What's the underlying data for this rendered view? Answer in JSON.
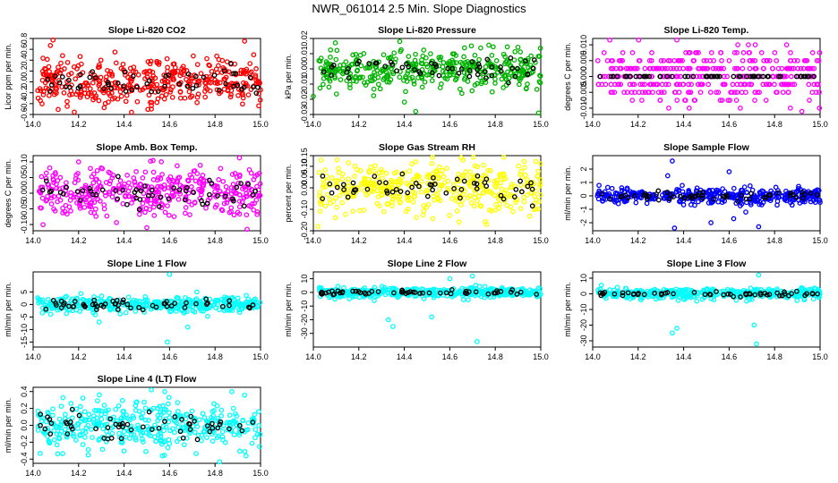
{
  "main_title": "NWR_061014  2.5 Min. Slope Diagnostics",
  "chart_data": [
    {
      "type": "scatter",
      "title": "Slope Li-820 CO2",
      "ylabel": "Licor ppm per min.",
      "color": "#ff0000",
      "xlim": [
        14.0,
        15.0
      ],
      "ylim": [
        -0.6,
        0.8
      ],
      "xticks": [
        14.0,
        14.2,
        14.4,
        14.6,
        14.8,
        15.0
      ],
      "xtick_labels": [
        "14.0",
        "14.2",
        "14.4",
        "14.6",
        "14.8",
        "15.0"
      ],
      "yticks": [
        -0.6,
        -0.4,
        -0.2,
        0.0,
        0.2,
        0.4,
        0.6,
        0.8
      ],
      "ytick_labels": [
        "-0.6",
        "-0.4",
        "-0.2",
        "0.0",
        "0.2",
        "0.4",
        "0.6",
        "0.8"
      ],
      "spread": 0.22,
      "outliers": [
        [
          14.93,
          0.75
        ],
        [
          14.36,
          0.55
        ],
        [
          14.15,
          -0.45
        ],
        [
          14.52,
          -0.5
        ],
        [
          14.97,
          0.5
        ]
      ],
      "seed": 11
    },
    {
      "type": "scatter",
      "title": "Slope Li-820 Pressure",
      "ylabel": "kPa per min.",
      "color": "#00b400",
      "xlim": [
        14.0,
        15.0
      ],
      "ylim": [
        -0.03,
        0.02
      ],
      "xticks": [
        14.0,
        14.2,
        14.4,
        14.6,
        14.8,
        15.0
      ],
      "xtick_labels": [
        "14.0",
        "14.2",
        "14.4",
        "14.6",
        "14.8",
        "15.0"
      ],
      "yticks": [
        -0.03,
        -0.02,
        -0.01,
        0.0,
        0.01,
        0.02
      ],
      "ytick_labels": [
        "-0.03",
        "-0.02",
        "-0.01",
        "0.00",
        "0.01",
        "0.02"
      ],
      "spread": 0.006,
      "outliers": [
        [
          14.99,
          -0.03
        ],
        [
          14.45,
          -0.028
        ],
        [
          14.38,
          0.018
        ],
        [
          14.0,
          -0.018
        ]
      ],
      "seed": 23
    },
    {
      "type": "scatter",
      "title": "Slope Li-820 Temp.",
      "ylabel": "degrees C per min.",
      "color": "#ff00ff",
      "xlim": [
        14.0,
        15.0
      ],
      "ylim": [
        -0.012,
        0.012
      ],
      "xticks": [
        14.0,
        14.2,
        14.4,
        14.6,
        14.8,
        15.0
      ],
      "xtick_labels": [
        "14.0",
        "14.2",
        "14.4",
        "14.6",
        "14.8",
        "15.0"
      ],
      "yticks": [
        -0.01,
        -0.005,
        0.0,
        0.005,
        0.01
      ],
      "ytick_labels": [
        "-0.010",
        "-0.005",
        "0.000",
        "0.005",
        "0.010"
      ],
      "quantized": 0.0025,
      "spread": 0.004,
      "outliers": [
        [
          14.37,
          0.012
        ],
        [
          14.92,
          -0.011
        ]
      ],
      "seed": 37
    },
    {
      "type": "scatter",
      "title": "Slope Amb. Box Temp.",
      "ylabel": "degrees C per min.",
      "color": "#ff00ff",
      "xlim": [
        14.0,
        15.0
      ],
      "ylim": [
        -0.12,
        0.12
      ],
      "xticks": [
        14.0,
        14.2,
        14.4,
        14.6,
        14.8,
        15.0
      ],
      "xtick_labels": [
        "14.0",
        "14.2",
        "14.4",
        "14.6",
        "14.8",
        "15.0"
      ],
      "yticks": [
        -0.1,
        -0.05,
        0.0,
        0.05,
        0.1
      ],
      "ytick_labels": [
        "-0.10",
        "-0.05",
        "0.00",
        "0.05",
        "0.10"
      ],
      "spread": 0.04,
      "outliers": [
        [
          14.5,
          -0.11
        ],
        [
          14.2,
          0.1
        ]
      ],
      "seed": 41
    },
    {
      "type": "scatter",
      "title": "Slope Gas Stream RH",
      "ylabel": "percent per min.",
      "color": "#ffff00",
      "xlim": [
        14.0,
        15.0
      ],
      "ylim": [
        -0.2,
        0.15
      ],
      "xticks": [
        14.0,
        14.2,
        14.4,
        14.6,
        14.8,
        15.0
      ],
      "xtick_labels": [
        "14.0",
        "14.2",
        "14.4",
        "14.6",
        "14.8",
        "15.0"
      ],
      "yticks": [
        -0.2,
        -0.1,
        0.0,
        0.05,
        0.1,
        0.15
      ],
      "ytick_labels": [
        "-0.20",
        "-0.10",
        "0.00",
        "0.05",
        "0.10",
        "0.15"
      ],
      "spread": 0.06,
      "outliers": [
        [
          14.02,
          -0.18
        ],
        [
          14.65,
          0.14
        ]
      ],
      "seed": 53
    },
    {
      "type": "scatter",
      "title": "Slope Sample Flow",
      "ylabel": "ml/min per min.",
      "color": "#0000ff",
      "xlim": [
        14.0,
        15.0
      ],
      "ylim": [
        -2.6,
        3.0
      ],
      "xticks": [
        14.0,
        14.2,
        14.4,
        14.6,
        14.8,
        15.0
      ],
      "xtick_labels": [
        "14.0",
        "14.2",
        "14.4",
        "14.6",
        "14.8",
        "15.0"
      ],
      "yticks": [
        -2,
        -1,
        0,
        1,
        2
      ],
      "ytick_labels": [
        "-2",
        "-1",
        "0",
        "1",
        "2"
      ],
      "spread": 0.3,
      "outliers": [
        [
          14.35,
          2.6
        ],
        [
          14.36,
          -2.4
        ],
        [
          14.6,
          1.8
        ],
        [
          14.62,
          -1.7
        ],
        [
          14.52,
          -2.0
        ],
        [
          14.73,
          -2.3
        ],
        [
          14.33,
          1.5
        ]
      ],
      "seed": 61
    },
    {
      "type": "scatter",
      "title": "Slope Line 1 Flow",
      "ylabel": "ml/min per min.",
      "color": "#00ffff",
      "xlim": [
        14.0,
        15.0
      ],
      "ylim": [
        -17,
        13
      ],
      "xticks": [
        14.0,
        14.2,
        14.4,
        14.6,
        14.8,
        15.0
      ],
      "xtick_labels": [
        "14.0",
        "14.2",
        "14.4",
        "14.6",
        "14.8",
        "15.0"
      ],
      "yticks": [
        -15,
        -10,
        -5,
        0,
        5
      ],
      "ytick_labels": [
        "-15",
        "-10",
        "-5",
        "0",
        "5"
      ],
      "spread": 1.5,
      "outliers": [
        [
          14.6,
          12
        ],
        [
          14.59,
          -15
        ],
        [
          14.68,
          -9
        ],
        [
          14.29,
          -7
        ],
        [
          14.72,
          5
        ]
      ],
      "seed": 71
    },
    {
      "type": "scatter",
      "title": "Slope Line 2 Flow",
      "ylabel": "ml/min per min.",
      "color": "#00ffff",
      "xlim": [
        14.0,
        15.0
      ],
      "ylim": [
        -40,
        15
      ],
      "xticks": [
        14.0,
        14.2,
        14.4,
        14.6,
        14.8,
        15.0
      ],
      "xtick_labels": [
        "14.0",
        "14.2",
        "14.4",
        "14.6",
        "14.8",
        "15.0"
      ],
      "yticks": [
        -30,
        -20,
        -10,
        0,
        10
      ],
      "ytick_labels": [
        "-30",
        "-20",
        "-10",
        "0",
        "10"
      ],
      "spread": 1.8,
      "outliers": [
        [
          14.35,
          -25
        ],
        [
          14.33,
          -20
        ],
        [
          14.72,
          -36
        ],
        [
          14.7,
          12
        ],
        [
          14.6,
          10
        ],
        [
          14.52,
          -18
        ]
      ],
      "seed": 83
    },
    {
      "type": "scatter",
      "title": "Slope Line 3 Flow",
      "ylabel": "ml/min per min.",
      "color": "#00ffff",
      "xlim": [
        14.0,
        15.0
      ],
      "ylim": [
        -34,
        14
      ],
      "xticks": [
        14.0,
        14.2,
        14.4,
        14.6,
        14.8,
        15.0
      ],
      "xtick_labels": [
        "14.0",
        "14.2",
        "14.4",
        "14.6",
        "14.8",
        "15.0"
      ],
      "yticks": [
        -30,
        -20,
        -10,
        0,
        10
      ],
      "ytick_labels": [
        "-30",
        "-20",
        "-10",
        "0",
        "10"
      ],
      "spread": 1.8,
      "outliers": [
        [
          14.35,
          -25
        ],
        [
          14.37,
          -22
        ],
        [
          14.72,
          -32
        ],
        [
          14.71,
          -20
        ],
        [
          14.73,
          12
        ]
      ],
      "seed": 97
    },
    {
      "type": "scatter",
      "title": "Slope Line 4 (LT) Flow",
      "ylabel": "ml/min per min.",
      "color": "#00ffff",
      "xlim": [
        14.0,
        15.0
      ],
      "ylim": [
        -0.45,
        0.45
      ],
      "xticks": [
        14.0,
        14.2,
        14.4,
        14.6,
        14.8,
        15.0
      ],
      "xtick_labels": [
        "14.0",
        "14.2",
        "14.4",
        "14.6",
        "14.8",
        "15.0"
      ],
      "yticks": [
        -0.4,
        -0.2,
        0.0,
        0.2,
        0.4
      ],
      "ytick_labels": [
        "-0.4",
        "-0.2",
        "0.0",
        "0.2",
        "0.4"
      ],
      "spread": 0.14,
      "outliers": [
        [
          14.52,
          0.42
        ],
        [
          14.82,
          -0.44
        ]
      ],
      "seed": 101
    }
  ]
}
